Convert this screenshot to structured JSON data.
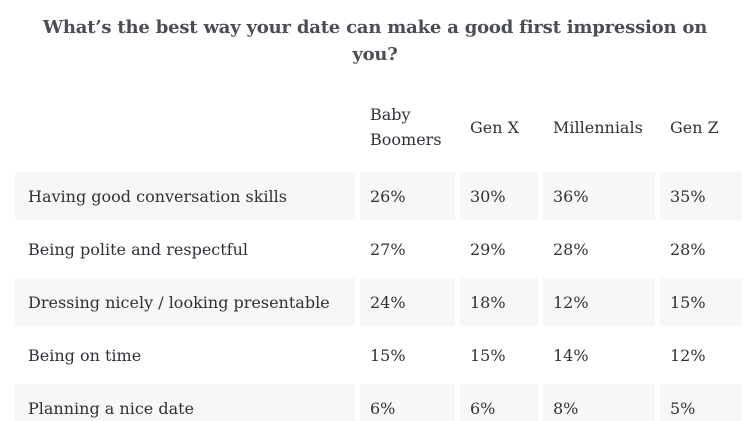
{
  "title": "What’s the best way your date can make a good first impression on you?",
  "table": {
    "columns": [
      "Baby Boomers",
      "Gen X",
      "Millennials",
      "Gen Z"
    ],
    "rows": [
      {
        "label": "Having good conversation skills",
        "values": [
          "26%",
          "30%",
          "36%",
          "35%"
        ]
      },
      {
        "label": "Being polite and respectful",
        "values": [
          "27%",
          "29%",
          "28%",
          "28%"
        ]
      },
      {
        "label": "Dressing nicely / looking presentable",
        "values": [
          "24%",
          "18%",
          "12%",
          "15%"
        ]
      },
      {
        "label": "Being on time",
        "values": [
          "15%",
          "15%",
          "14%",
          "12%"
        ]
      },
      {
        "label": "Planning a nice date",
        "values": [
          "6%",
          "6%",
          "8%",
          "5%"
        ]
      }
    ]
  },
  "colors": {
    "row_shade": "#f7f7f6",
    "title_text": "#4a4d53",
    "table_text": "#2e3138",
    "background": "#ffffff"
  },
  "chart_data": {
    "type": "table",
    "title": "What’s the best way your date can make a good first impression on you?",
    "categories": [
      "Having good conversation skills",
      "Being polite and respectful",
      "Dressing nicely / looking presentable",
      "Being on time",
      "Planning a nice date"
    ],
    "series": [
      {
        "name": "Baby Boomers",
        "values": [
          26,
          27,
          24,
          15,
          6
        ]
      },
      {
        "name": "Gen X",
        "values": [
          30,
          29,
          18,
          15,
          6
        ]
      },
      {
        "name": "Millennials",
        "values": [
          36,
          28,
          12,
          14,
          8
        ]
      },
      {
        "name": "Gen Z",
        "values": [
          35,
          28,
          15,
          12,
          5
        ]
      }
    ],
    "unit": "%",
    "layout": {
      "row_shading": "alternate-odd-rows",
      "grid": false,
      "legend_position": "column-headers"
    }
  }
}
